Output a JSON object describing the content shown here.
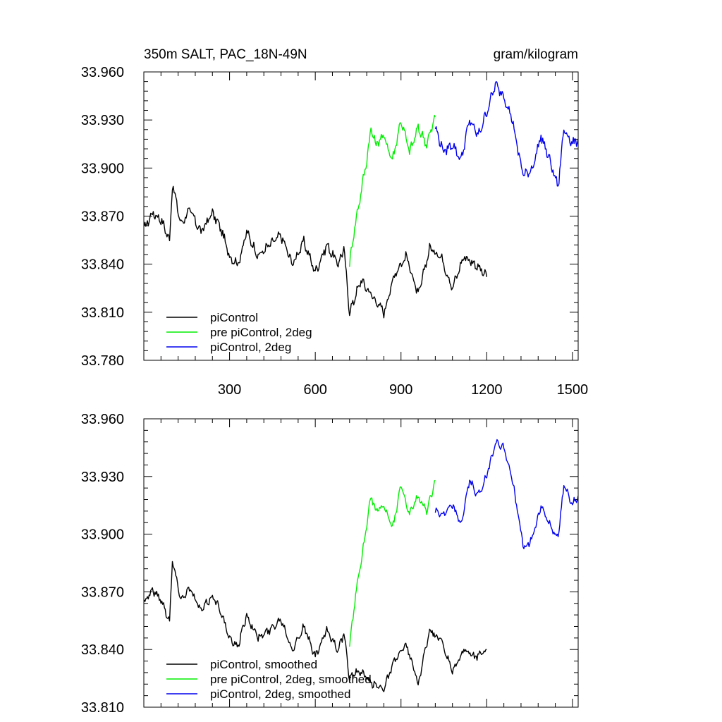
{
  "chart_data": [
    {
      "type": "line",
      "title": "350m SALT, PAC_18N-49N",
      "units": "gram/kilogram",
      "xlim": [
        0,
        1520
      ],
      "ylim": [
        33.78,
        33.96
      ],
      "xticks": [
        300,
        600,
        900,
        1200,
        1500
      ],
      "xtick_labels": [
        "300",
        "600",
        "900",
        "1200",
        "1500"
      ],
      "yticks": [
        33.78,
        33.81,
        33.84,
        33.87,
        33.9,
        33.93,
        33.96
      ],
      "ytick_labels": [
        "33.780",
        "33.810",
        "33.840",
        "33.870",
        "33.900",
        "33.930",
        "33.960"
      ],
      "legend_position": "bottom-left",
      "series": [
        {
          "name": "piControl",
          "color": "#000000",
          "x": [
            1,
            30,
            60,
            90,
            100,
            130,
            160,
            200,
            240,
            270,
            300,
            330,
            360,
            400,
            440,
            480,
            520,
            560,
            600,
            640,
            680,
            700,
            720,
            740,
            760,
            800,
            840,
            880,
            920,
            960,
            1000,
            1040,
            1080,
            1120,
            1160,
            1200
          ],
          "y": [
            33.862,
            33.872,
            33.868,
            33.855,
            33.89,
            33.865,
            33.874,
            33.86,
            33.872,
            33.862,
            33.845,
            33.84,
            33.86,
            33.845,
            33.852,
            33.858,
            33.84,
            33.854,
            33.835,
            33.852,
            33.84,
            33.85,
            33.81,
            33.82,
            33.83,
            33.82,
            33.81,
            33.835,
            33.845,
            33.82,
            33.85,
            33.845,
            33.825,
            33.845,
            33.84,
            33.832
          ]
        },
        {
          "name": "pre piControl, 2deg",
          "color": "#00ee00",
          "x": [
            720,
            735,
            750,
            765,
            780,
            795,
            810,
            840,
            870,
            900,
            930,
            960,
            990,
            1020
          ],
          "y": [
            33.84,
            33.86,
            33.875,
            33.89,
            33.905,
            33.925,
            33.915,
            33.92,
            33.905,
            33.93,
            33.91,
            33.925,
            33.915,
            33.932
          ]
        },
        {
          "name": "piControl, 2deg",
          "color": "#0000ee",
          "x": [
            1020,
            1050,
            1080,
            1110,
            1140,
            1170,
            1200,
            1230,
            1260,
            1290,
            1310,
            1330,
            1360,
            1390,
            1420,
            1450,
            1470,
            1500,
            1520
          ],
          "y": [
            33.925,
            33.91,
            33.915,
            33.905,
            33.93,
            33.92,
            33.935,
            33.952,
            33.945,
            33.93,
            33.91,
            33.895,
            33.9,
            33.92,
            33.905,
            33.888,
            33.925,
            33.915,
            33.918
          ]
        }
      ]
    },
    {
      "type": "line",
      "xlim": [
        0,
        1520
      ],
      "ylim": [
        33.81,
        33.96
      ],
      "xticks": [
        300,
        600,
        900,
        1200,
        1500
      ],
      "yticks": [
        33.81,
        33.84,
        33.87,
        33.9,
        33.93,
        33.96
      ],
      "ytick_labels": [
        "33.810",
        "33.840",
        "33.870",
        "33.900",
        "33.930",
        "33.960"
      ],
      "legend_position": "bottom-left",
      "series": [
        {
          "name": "piControl, smoothed",
          "color": "#000000",
          "x": [
            1,
            30,
            60,
            90,
            100,
            130,
            160,
            200,
            240,
            270,
            300,
            330,
            360,
            400,
            440,
            480,
            520,
            560,
            600,
            640,
            680,
            700,
            720,
            740,
            760,
            800,
            840,
            880,
            920,
            960,
            1000,
            1040,
            1080,
            1120,
            1160,
            1200
          ],
          "y": [
            33.865,
            33.871,
            33.866,
            33.855,
            33.886,
            33.866,
            33.872,
            33.86,
            33.868,
            33.86,
            33.845,
            33.842,
            33.858,
            33.846,
            33.85,
            33.856,
            33.84,
            33.852,
            33.836,
            33.85,
            33.84,
            33.848,
            33.825,
            33.828,
            33.828,
            33.822,
            33.82,
            33.835,
            33.842,
            33.822,
            33.85,
            33.845,
            33.828,
            33.84,
            33.836,
            33.84
          ]
        },
        {
          "name": "pre piControl, 2deg, smoothed",
          "color": "#00ee00",
          "x": [
            720,
            735,
            750,
            765,
            780,
            795,
            810,
            840,
            870,
            900,
            930,
            960,
            990,
            1020
          ],
          "y": [
            33.84,
            33.862,
            33.876,
            33.89,
            33.905,
            33.92,
            33.912,
            33.915,
            33.903,
            33.925,
            33.91,
            33.92,
            33.912,
            33.928
          ]
        },
        {
          "name": "piControl, 2deg, smoothed",
          "color": "#0000ee",
          "x": [
            1020,
            1050,
            1080,
            1110,
            1140,
            1170,
            1200,
            1230,
            1260,
            1290,
            1310,
            1330,
            1360,
            1390,
            1420,
            1450,
            1470,
            1500,
            1520
          ],
          "y": [
            33.912,
            33.91,
            33.915,
            33.905,
            33.928,
            33.92,
            33.93,
            33.948,
            33.945,
            33.928,
            33.91,
            33.892,
            33.898,
            33.915,
            33.905,
            33.898,
            33.925,
            33.916,
            33.92
          ]
        }
      ]
    }
  ]
}
